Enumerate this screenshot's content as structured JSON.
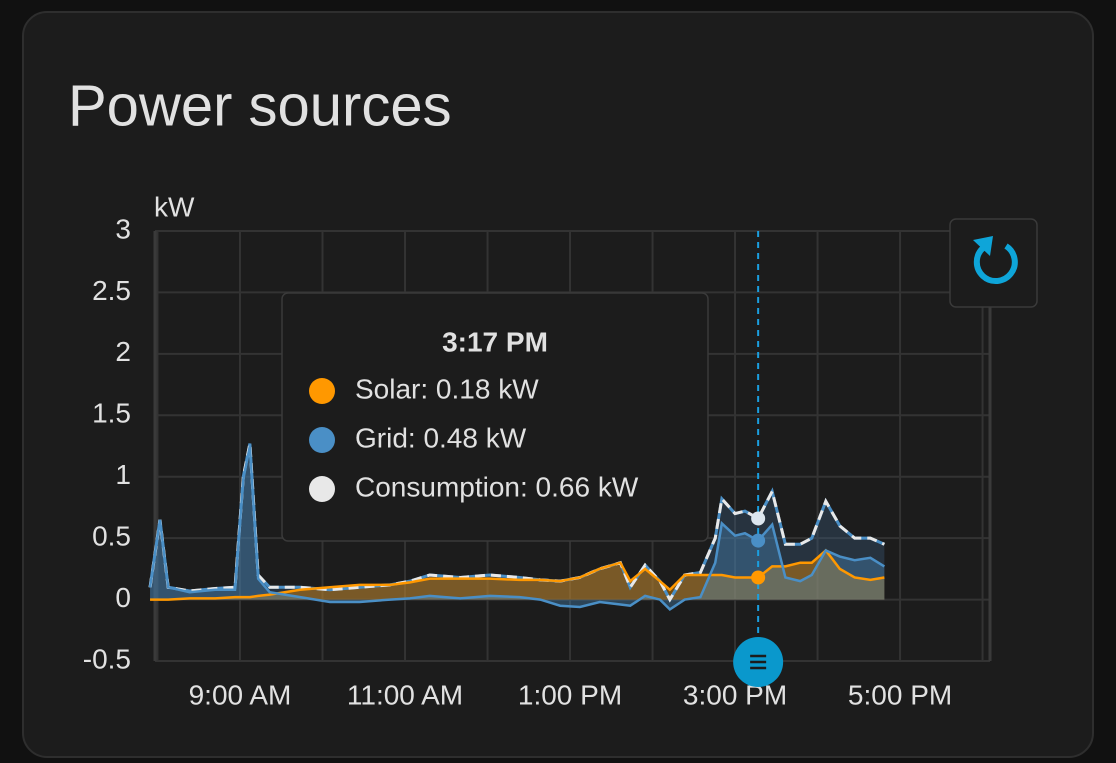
{
  "chart_data": {
    "type": "area-line",
    "title": "Power sources",
    "y_label": "kW",
    "x": [
      7.91,
      8.03,
      8.13,
      8.39,
      8.7,
      8.94,
      9.04,
      9.12,
      9.22,
      9.36,
      9.73,
      10.09,
      10.45,
      10.82,
      11.06,
      11.3,
      11.67,
      12.03,
      12.39,
      12.64,
      12.88,
      13.12,
      13.36,
      13.61,
      13.73,
      13.91,
      14.09,
      14.21,
      14.39,
      14.58,
      14.76,
      14.84,
      15.0,
      15.12,
      15.28,
      15.45,
      15.61,
      15.79,
      15.93,
      16.1,
      16.27,
      16.45,
      16.64,
      16.81
    ],
    "series": [
      {
        "name": "Solar",
        "color": "#ff9800",
        "values": [
          0,
          0,
          0,
          0.01,
          0.01,
          0.02,
          0.02,
          0.02,
          0.03,
          0.04,
          0.08,
          0.1,
          0.12,
          0.12,
          0.14,
          0.17,
          0.17,
          0.17,
          0.16,
          0.16,
          0.15,
          0.18,
          0.25,
          0.3,
          0.15,
          0.25,
          0.15,
          0.08,
          0.2,
          0.2,
          0.2,
          0.2,
          0.18,
          0.18,
          0.18,
          0.27,
          0.27,
          0.3,
          0.3,
          0.4,
          0.25,
          0.18,
          0.16,
          0.18
        ]
      },
      {
        "name": "Grid",
        "color": "#4a8fc6",
        "values": [
          0.1,
          0.65,
          0.1,
          0.06,
          0.08,
          0.08,
          0.98,
          1.25,
          0.17,
          0.06,
          0.02,
          -0.02,
          -0.02,
          0.0,
          0.01,
          0.03,
          0.01,
          0.03,
          0.02,
          0.0,
          -0.05,
          -0.06,
          -0.02,
          -0.04,
          -0.05,
          0.03,
          0.0,
          -0.08,
          0.0,
          0.02,
          0.3,
          0.62,
          0.52,
          0.54,
          0.48,
          0.61,
          0.18,
          0.15,
          0.2,
          0.4,
          0.35,
          0.32,
          0.34,
          0.27
        ]
      },
      {
        "name": "Consumption",
        "color": "#e8e8e8",
        "values": [
          0.1,
          0.65,
          0.1,
          0.07,
          0.09,
          0.1,
          1.0,
          1.27,
          0.2,
          0.1,
          0.1,
          0.08,
          0.1,
          0.12,
          0.15,
          0.2,
          0.18,
          0.2,
          0.18,
          0.16,
          0.15,
          0.18,
          0.25,
          0.3,
          0.1,
          0.28,
          0.15,
          0.0,
          0.2,
          0.22,
          0.5,
          0.82,
          0.7,
          0.72,
          0.66,
          0.88,
          0.45,
          0.45,
          0.5,
          0.8,
          0.6,
          0.5,
          0.5,
          0.45
        ]
      }
    ],
    "xlim": [
      7.97,
      18.09
    ],
    "xticks": [
      {
        "value": 9,
        "label": "9:00 AM"
      },
      {
        "value": 11,
        "label": "11:00 AM"
      },
      {
        "value": 13,
        "label": "1:00 PM"
      },
      {
        "value": 15,
        "label": "3:00 PM"
      },
      {
        "value": 17,
        "label": "5:00 PM"
      }
    ],
    "xgrid": [
      8,
      9,
      10,
      11,
      12,
      13,
      14,
      15,
      16,
      17,
      18
    ],
    "ylim": [
      -0.5,
      3
    ],
    "yticks": [
      3,
      2.5,
      2,
      1.5,
      1,
      0.5,
      0,
      -0.5
    ],
    "grid": true,
    "tooltip": {
      "point": 34,
      "title": "3:17 PM",
      "items": [
        "Solar: 0.18 kW",
        "Grid: 0.48 kW",
        "Consumption: 0.66 kW"
      ]
    }
  }
}
